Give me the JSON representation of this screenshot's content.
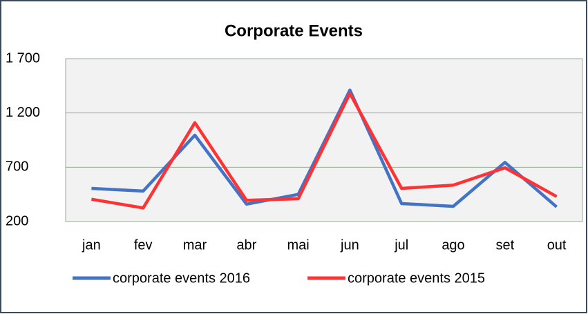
{
  "chart_data": {
    "type": "line",
    "title": "Corporate Events",
    "categories": [
      "jan",
      "fev",
      "mar",
      "abr",
      "mai",
      "jun",
      "jul",
      "ago",
      "set",
      "out"
    ],
    "series": [
      {
        "name": "corporate events 2016",
        "color": "#4472c4",
        "values": [
          505,
          480,
          995,
          360,
          450,
          1410,
          365,
          340,
          745,
          335
        ]
      },
      {
        "name": "corporate events 2015",
        "color": "#ff3333",
        "values": [
          405,
          325,
          1110,
          395,
          410,
          1380,
          505,
          535,
          695,
          430
        ]
      }
    ],
    "ylim": [
      200,
      1700
    ],
    "yticks": [
      200,
      700,
      {
        "value": 1200,
        "label": "1 200"
      },
      {
        "value": 1700,
        "label": "1 700"
      }
    ],
    "grid": true
  }
}
